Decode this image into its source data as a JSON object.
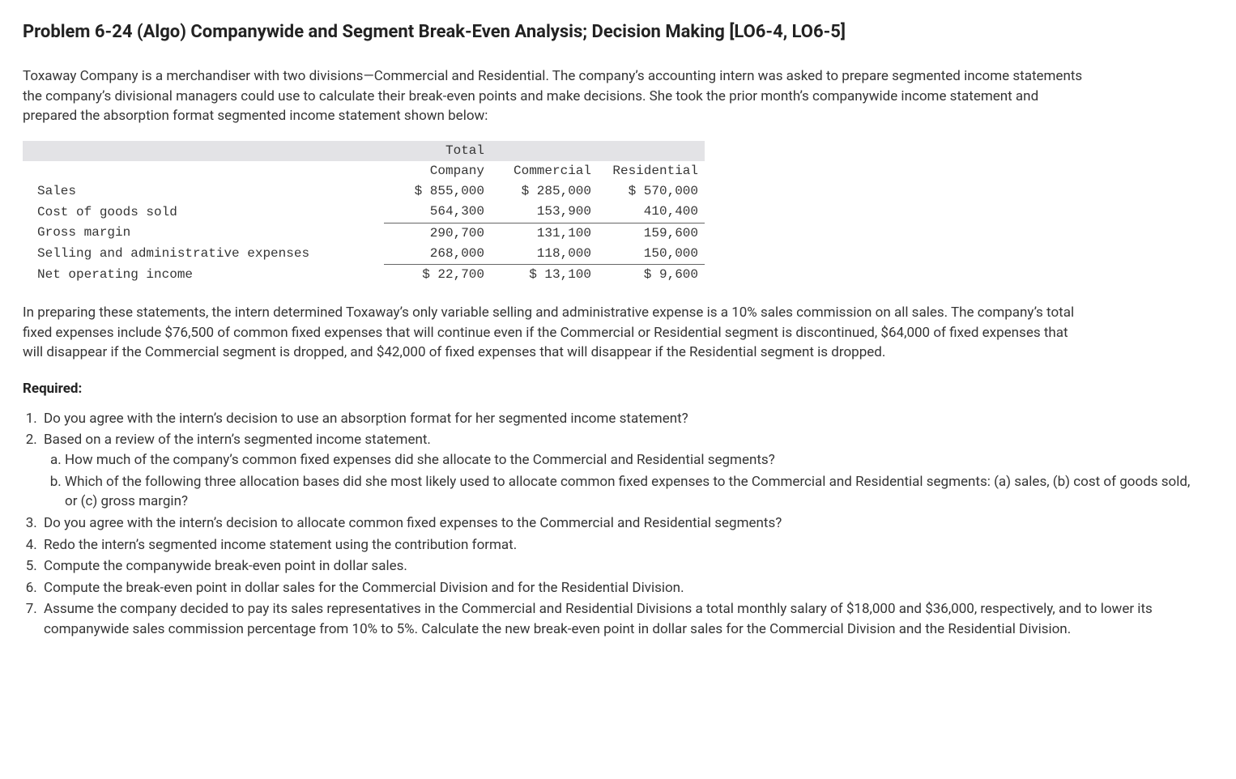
{
  "title": "Problem 6-24 (Algo) Companywide and Segment Break-Even Analysis; Decision Making [LO6-4, LO6-5]",
  "intro": "Toxaway Company is a merchandiser with two divisions—Commercial and Residential. The company’s accounting intern was asked to prepare segmented income statements the company’s divisional managers could use to calculate their break-even points and make decisions. She took the prior month’s companywide income statement and prepared the absorption format segmented income statement shown below:",
  "table": {
    "header": {
      "c0": "",
      "c1_line1": "Total",
      "c1_line2": "Company",
      "c2": "Commercial",
      "c3": "Residential"
    },
    "rows": [
      {
        "label": "Sales",
        "total": "$ 855,000",
        "commercial": "$ 285,000",
        "residential": "$ 570,000",
        "underline": false
      },
      {
        "label": "Cost of goods sold",
        "total": "564,300",
        "commercial": "153,900",
        "residential": "410,400",
        "underline": true
      },
      {
        "label": "Gross margin",
        "total": "290,700",
        "commercial": "131,100",
        "residential": "159,600",
        "underline": false
      },
      {
        "label": "Selling and administrative expenses",
        "total": "268,000",
        "commercial": "118,000",
        "residential": "150,000",
        "underline": true
      },
      {
        "label": "Net operating income",
        "total": "$ 22,700",
        "commercial": "$ 13,100",
        "residential": "$ 9,600",
        "underline": false
      }
    ]
  },
  "body2": "In preparing these statements, the intern determined Toxaway’s only variable selling and administrative expense is a 10% sales commission on all sales. The company’s total fixed expenses include $76,500 of common fixed expenses that will continue even if the Commercial or Residential segment is discontinued, $64,000 of fixed expenses that will disappear if the Commercial segment is dropped, and $42,000 of fixed expenses that will disappear if the Residential segment is dropped.",
  "required_label": "Required:",
  "requirements": {
    "r1": "Do you agree with the intern’s decision to use an absorption format for her segmented income statement?",
    "r2": "Based on a review of the intern’s segmented income statement.",
    "r2a": "How much of the company’s common fixed expenses did she allocate to the Commercial and Residential segments?",
    "r2b": "Which of the following three allocation bases did she most likely used to allocate common fixed expenses to the Commercial and Residential segments: (a) sales, (b) cost of goods sold, or (c) gross margin?",
    "r3": "Do you agree with the intern’s decision to allocate common fixed expenses to the Commercial and Residential segments?",
    "r4": "Redo the intern’s segmented income statement using the contribution format.",
    "r5": "Compute the companywide break-even point in dollar sales.",
    "r6": "Compute the break-even point in dollar sales for the Commercial Division and for the Residential Division.",
    "r7": "Assume the company decided to pay its sales representatives in the Commercial and Residential Divisions a total monthly salary of $18,000 and $36,000, respectively, and to lower its companywide sales commission percentage from 10% to 5%. Calculate the new break-even point in dollar sales for the Commercial Division and the Residential Division."
  }
}
